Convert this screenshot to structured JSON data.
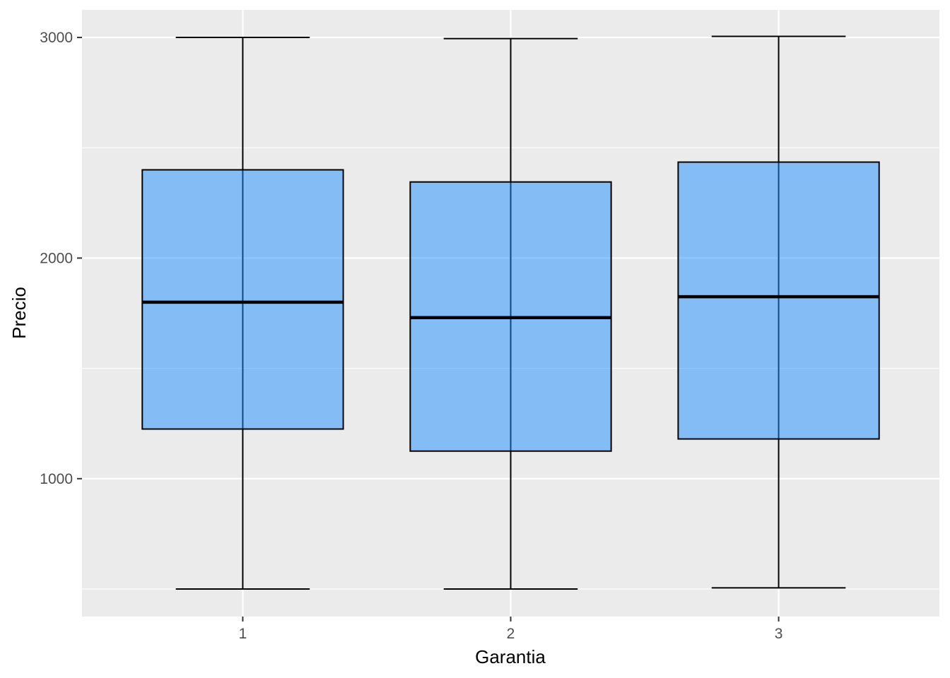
{
  "chart_data": {
    "type": "boxplot",
    "title": "",
    "xlabel": "Garantia",
    "ylabel": "Precio",
    "categories": [
      "1",
      "2",
      "3"
    ],
    "boxes": [
      {
        "category": "1",
        "min": 500,
        "q1": 1225,
        "median": 1800,
        "q3": 2400,
        "max": 3000
      },
      {
        "category": "2",
        "min": 500,
        "q1": 1125,
        "median": 1730,
        "q3": 2345,
        "max": 2995
      },
      {
        "category": "3",
        "min": 505,
        "q1": 1180,
        "median": 1825,
        "q3": 2435,
        "max": 3005
      }
    ],
    "ylim": [
      375,
      3125
    ],
    "y_major_ticks": [
      1000,
      2000,
      3000
    ],
    "y_minor_ticks": [
      500,
      1500,
      2500
    ],
    "grid": true,
    "colors": {
      "panel_background": "#EBEBEB",
      "grid": "#FFFFFF",
      "box_fill": "#1E90FF",
      "box_fill_opacity": 0.5,
      "box_stroke": "#000000",
      "tick_label": "#4D4D4D",
      "axis_title": "#000000"
    }
  }
}
